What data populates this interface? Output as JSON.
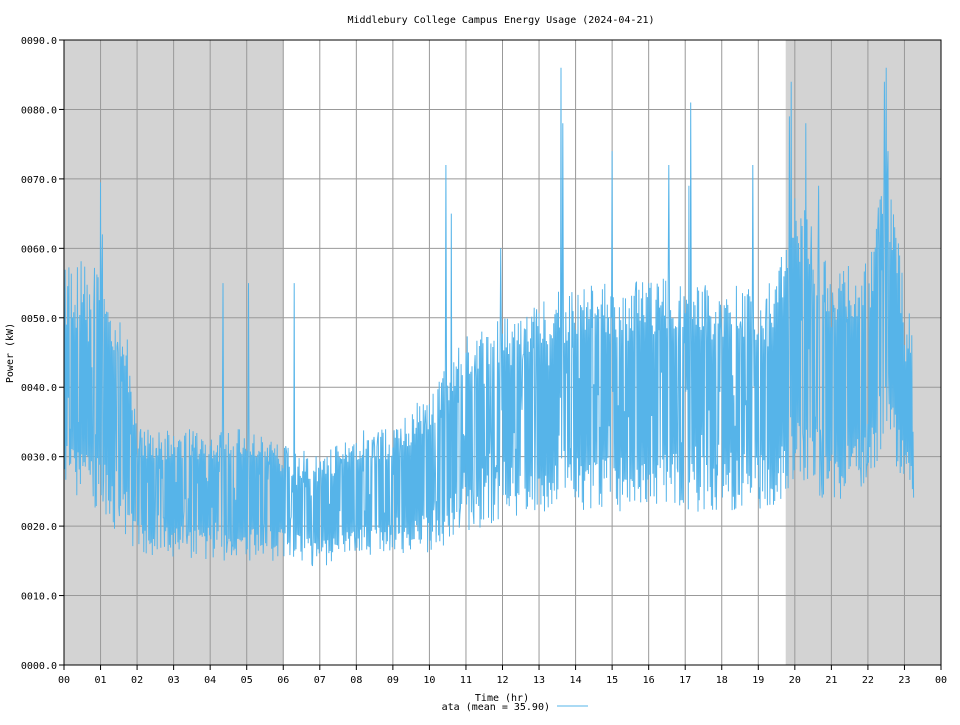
{
  "chart_data": {
    "type": "line",
    "title": "Middlebury College Campus Energy Usage (2024-04-21)",
    "xlabel": "Time (hr)",
    "ylabel": "Power (kW)",
    "xlim": [
      0,
      24
    ],
    "ylim": [
      0,
      90
    ],
    "x_ticks": [
      "00",
      "01",
      "02",
      "03",
      "04",
      "05",
      "06",
      "07",
      "08",
      "09",
      "10",
      "11",
      "12",
      "13",
      "14",
      "15",
      "16",
      "17",
      "18",
      "19",
      "20",
      "21",
      "22",
      "23",
      "00"
    ],
    "y_ticks": [
      "0000.0",
      "0010.0",
      "0020.0",
      "0030.0",
      "0040.0",
      "0050.0",
      "0060.0",
      "0070.0",
      "0080.0",
      "0090.0"
    ],
    "grid": true,
    "shaded_hours": [
      [
        0,
        6
      ],
      [
        19.75,
        24
      ]
    ],
    "shade_color": "#d3d3d3",
    "grid_color": "#999999",
    "series": [
      {
        "name": "ata",
        "legend_label": "ata (mean = 35.90)",
        "mean": 35.9,
        "color": "#56b4e9",
        "x_end": 23.25,
        "profile": [
          {
            "x": 0.0,
            "low": 24,
            "high": 57
          },
          {
            "x": 1.0,
            "low": 20,
            "high": 60
          },
          {
            "x": 1.75,
            "low": 18,
            "high": 47
          },
          {
            "x": 2.0,
            "low": 16,
            "high": 34
          },
          {
            "x": 4.0,
            "low": 15,
            "high": 34
          },
          {
            "x": 5.0,
            "low": 15,
            "high": 34
          },
          {
            "x": 6.0,
            "low": 15,
            "high": 32
          },
          {
            "x": 7.0,
            "low": 14,
            "high": 30
          },
          {
            "x": 8.0,
            "low": 15,
            "high": 34
          },
          {
            "x": 9.0,
            "low": 16,
            "high": 34
          },
          {
            "x": 10.0,
            "low": 16,
            "high": 40
          },
          {
            "x": 11.0,
            "low": 19,
            "high": 48
          },
          {
            "x": 12.0,
            "low": 21,
            "high": 50
          },
          {
            "x": 14.0,
            "low": 22,
            "high": 55
          },
          {
            "x": 16.0,
            "low": 22,
            "high": 56
          },
          {
            "x": 18.0,
            "low": 22,
            "high": 55
          },
          {
            "x": 19.5,
            "low": 22,
            "high": 55
          },
          {
            "x": 20.0,
            "low": 27,
            "high": 70
          },
          {
            "x": 21.0,
            "low": 23,
            "high": 57
          },
          {
            "x": 22.0,
            "low": 25,
            "high": 58
          },
          {
            "x": 22.5,
            "low": 32,
            "high": 72
          },
          {
            "x": 23.25,
            "low": 22,
            "high": 47
          }
        ],
        "peaks": [
          {
            "x": 1.0,
            "y": 69.5
          },
          {
            "x": 1.05,
            "y": 62
          },
          {
            "x": 4.35,
            "y": 55
          },
          {
            "x": 5.05,
            "y": 55
          },
          {
            "x": 6.3,
            "y": 55
          },
          {
            "x": 10.45,
            "y": 72
          },
          {
            "x": 10.6,
            "y": 65
          },
          {
            "x": 11.95,
            "y": 60
          },
          {
            "x": 13.6,
            "y": 86
          },
          {
            "x": 13.65,
            "y": 78
          },
          {
            "x": 15.0,
            "y": 74
          },
          {
            "x": 16.55,
            "y": 72
          },
          {
            "x": 17.15,
            "y": 81
          },
          {
            "x": 17.1,
            "y": 69
          },
          {
            "x": 18.85,
            "y": 72
          },
          {
            "x": 19.9,
            "y": 84
          },
          {
            "x": 19.85,
            "y": 79
          },
          {
            "x": 20.3,
            "y": 78
          },
          {
            "x": 20.65,
            "y": 69
          },
          {
            "x": 22.5,
            "y": 86
          },
          {
            "x": 22.45,
            "y": 84
          },
          {
            "x": 22.55,
            "y": 74
          }
        ]
      }
    ]
  }
}
